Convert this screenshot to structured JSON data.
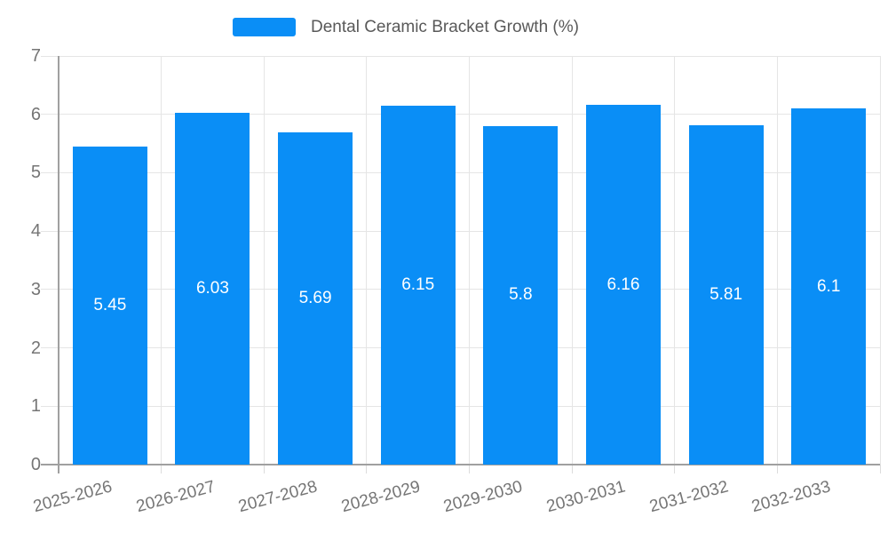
{
  "legend": {
    "label": "Dental Ceramic Bracket Growth (%)"
  },
  "chart_data": {
    "type": "bar",
    "title": "Dental Ceramic Bracket Growth (%)",
    "series_name": "Dental Ceramic Bracket Growth (%)",
    "categories": [
      "2025-2026",
      "2026-2027",
      "2027-2028",
      "2028-2029",
      "2029-2030",
      "2030-2031",
      "2031-2032",
      "2032-2033"
    ],
    "values": [
      5.45,
      6.03,
      5.69,
      6.15,
      5.8,
      6.16,
      5.81,
      6.1
    ],
    "value_labels": [
      "5.45",
      "6.03",
      "5.69",
      "6.15",
      "5.8",
      "6.16",
      "5.81",
      "6.1"
    ],
    "xlabel": "",
    "ylabel": "",
    "ylim": [
      0,
      7
    ],
    "y_ticks": [
      0,
      1,
      2,
      3,
      4,
      5,
      6,
      7
    ],
    "grid": true,
    "legend_position": "top",
    "x_label_rotation_deg": -15,
    "colors": {
      "bar": "#0a8ef6",
      "bar_value_text": "#ffffff",
      "axis_text": "#757575",
      "legend_text": "#595959",
      "gridline": "#e5e5e5",
      "axis_line": "#a0a0a0",
      "x_tick": "#dcdcdc",
      "background": "#ffffff"
    }
  }
}
